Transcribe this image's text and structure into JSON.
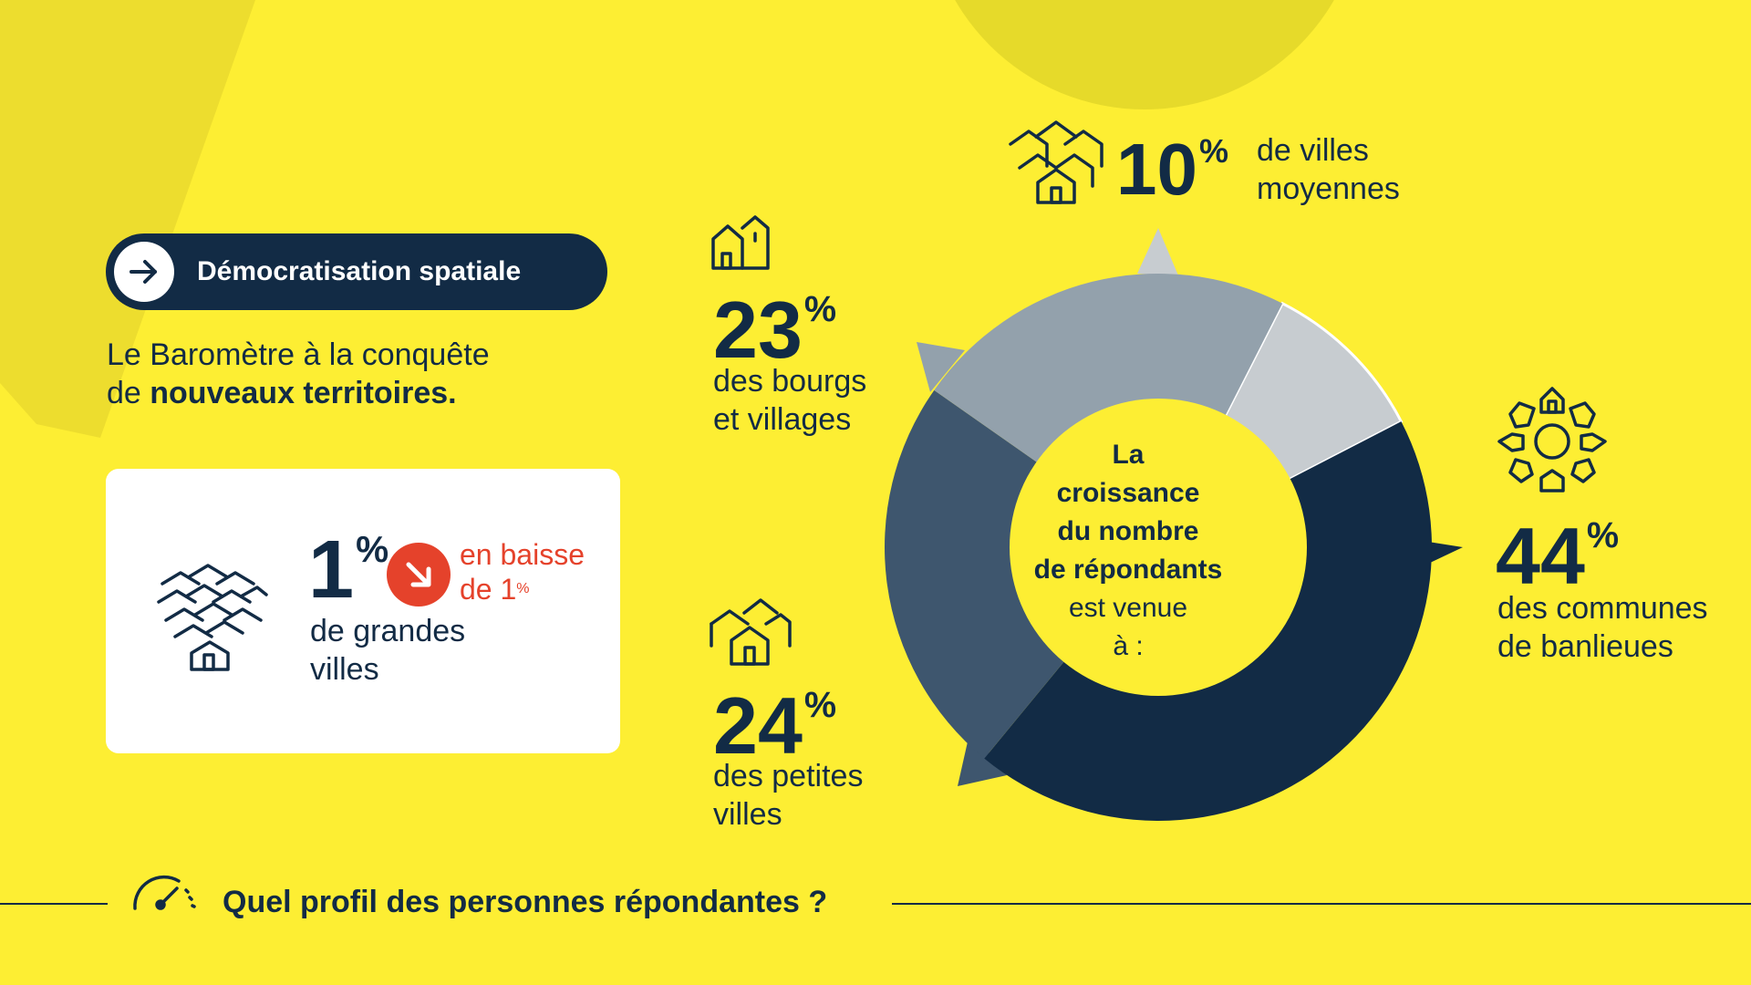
{
  "header": {
    "pill_label": "Démocratisation spatiale",
    "intro_line1": "Le Baromètre à la conquête",
    "intro_line2_prefix": "de ",
    "intro_line2_bold": "nouveaux territoires."
  },
  "card": {
    "value": "1",
    "unit": "%",
    "label_line1": "de grandes",
    "label_line2": "villes",
    "change_line1": "en baisse",
    "change_line2_prefix": "de 1",
    "change_line2_unit": "%"
  },
  "donut_center": {
    "bold_lines": [
      "La",
      "croissance",
      "du nombre",
      "de répondants"
    ],
    "lines": [
      "est venue",
      "à :"
    ]
  },
  "segments": {
    "villes_moyennes": {
      "value": "10",
      "unit": "%",
      "line1": "de villes",
      "line2": "moyennes"
    },
    "bourgs": {
      "value": "23",
      "unit": "%",
      "line1": "des bourgs",
      "line2": "et villages"
    },
    "petites": {
      "value": "24",
      "unit": "%",
      "line1": "des petites",
      "line2": "villes"
    },
    "banlieues": {
      "value": "44",
      "unit": "%",
      "line1": "des communes",
      "line2": "de banlieues"
    }
  },
  "footer": {
    "title": "Quel profil des personnes répondantes ?"
  },
  "colors": {
    "background": "#fdee33",
    "navy": "#122b45",
    "slate": "#3e566e",
    "gray_blue": "#93a1ac",
    "light_gray": "#c7ccd0",
    "red": "#e5422b",
    "white": "#ffffff"
  },
  "chart_data": {
    "type": "pie",
    "donut": true,
    "categories": [
      "villes moyennes",
      "communes de banlieues",
      "petites villes",
      "bourgs et villages"
    ],
    "values": [
      10,
      44,
      24,
      23
    ],
    "colors": [
      "#c7ccd0",
      "#122b45",
      "#3e566e",
      "#93a1ac"
    ],
    "unit": "%"
  }
}
